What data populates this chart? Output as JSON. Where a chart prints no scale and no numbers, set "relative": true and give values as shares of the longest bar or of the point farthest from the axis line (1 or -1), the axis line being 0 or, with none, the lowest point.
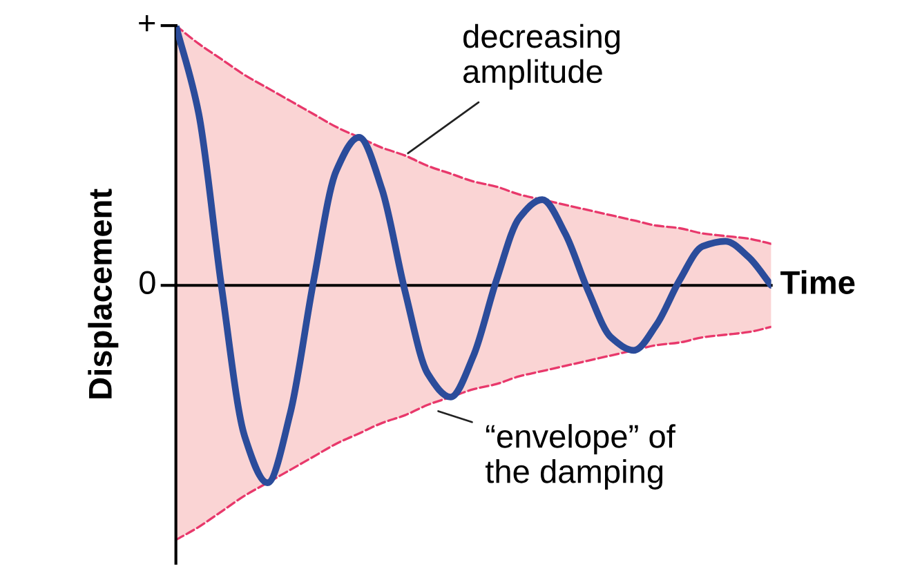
{
  "chart_data": {
    "type": "line",
    "relative": true,
    "xlabel": "Time",
    "ylabel": "Displacement",
    "categories": [
      null,
      null,
      null,
      null,
      null,
      null,
      null,
      null,
      null,
      null,
      null,
      null,
      null,
      null,
      null,
      null,
      null,
      null,
      null,
      null,
      null,
      null,
      null,
      null,
      null,
      null,
      null
    ],
    "series": [
      {
        "color": "#2b4c9b",
        "line_style": "solid",
        "values": [
          1,
          0.66,
          -0.01,
          -0.58,
          -0.76,
          -0.49,
          0.01,
          0.44,
          0.57,
          0.37,
          -0.02,
          -0.34,
          -0.43,
          -0.27,
          0.02,
          0.26,
          0.33,
          0.2,
          -0.02,
          -0.2,
          -0.25,
          -0.15,
          0.02,
          0.15,
          0.17,
          0.11,
          0
        ],
        "upper": [
          1,
          0.93,
          0.87,
          0.81,
          0.76,
          0.71,
          0.66,
          0.61,
          0.57,
          0.53,
          0.5,
          0.46,
          0.43,
          0.4,
          0.38,
          0.35,
          0.33,
          0.31,
          0.29,
          0.27,
          0.25,
          0.23,
          0.22,
          0.2,
          0.19,
          0.18,
          0.16
        ],
        "lower": [
          -0.98,
          -0.93,
          -0.87,
          -0.81,
          -0.76,
          -0.71,
          -0.66,
          -0.61,
          -0.57,
          -0.53,
          -0.5,
          -0.46,
          -0.43,
          -0.4,
          -0.38,
          -0.35,
          -0.33,
          -0.31,
          -0.29,
          -0.27,
          -0.25,
          -0.23,
          -0.22,
          -0.2,
          -0.19,
          -0.18,
          -0.16
        ]
      },
      {
        "color": "#e8386b",
        "line_style": "dashed",
        "values": [
          1,
          0.93,
          0.87,
          0.81,
          0.76,
          0.71,
          0.66,
          0.61,
          0.57,
          0.53,
          0.5,
          0.46,
          0.43,
          0.4,
          0.38,
          0.35,
          0.33,
          0.31,
          0.29,
          0.27,
          0.25,
          0.23,
          0.22,
          0.2,
          0.19,
          0.18,
          0.16
        ]
      },
      {
        "color": "#e8386b",
        "line_style": "dashed",
        "values": [
          -0.98,
          -0.93,
          -0.87,
          -0.81,
          -0.76,
          -0.71,
          -0.66,
          -0.61,
          -0.57,
          -0.53,
          -0.5,
          -0.46,
          -0.43,
          -0.4,
          -0.38,
          -0.35,
          -0.33,
          -0.31,
          -0.29,
          -0.27,
          -0.25,
          -0.23,
          -0.22,
          -0.2,
          -0.19,
          -0.18,
          -0.16
        ]
      }
    ],
    "annotations": [
      "decreasing\namplitude",
      "“envelope” of\nthe damping",
      "+",
      "0"
    ],
    "legend": false,
    "marker": "none"
  }
}
